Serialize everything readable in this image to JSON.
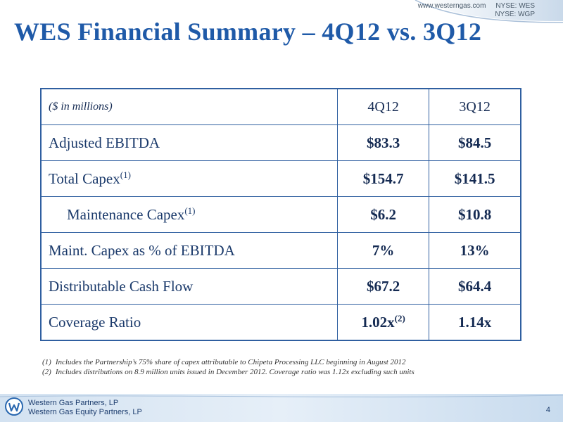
{
  "header": {
    "website": "www.westerngas.com",
    "ticker_wes": "NYSE: WES",
    "ticker_wgp": "NYSE: WGP"
  },
  "title": "WES Financial Summary – 4Q12 vs. 3Q12",
  "table": {
    "unit_label": "($ in millions)",
    "columns": [
      "4Q12",
      "3Q12"
    ],
    "rows": [
      {
        "label": "Adjusted EBITDA",
        "sup": "",
        "v1": "$83.3",
        "v1_sup": "",
        "v2": "$84.5"
      },
      {
        "label": "Total Capex",
        "sup": "(1)",
        "v1": "$154.7",
        "v1_sup": "",
        "v2": "$141.5"
      },
      {
        "label": "Maintenance Capex",
        "sup": "(1)",
        "v1": "$6.2",
        "v1_sup": "",
        "v2": "$10.8"
      },
      {
        "label": "Maint. Capex as % of EBITDA",
        "sup": "",
        "v1": "7%",
        "v1_sup": "",
        "v2": "13%"
      },
      {
        "label": "Distributable Cash Flow",
        "sup": "",
        "v1": "$67.2",
        "v1_sup": "",
        "v2": "$64.4"
      },
      {
        "label": "Coverage Ratio",
        "sup": "",
        "v1": "1.02x",
        "v1_sup": "(2)",
        "v2": "1.14x"
      }
    ]
  },
  "footnotes": [
    {
      "marker": "(1)",
      "text": "Includes the Partnership’s 75% share of capex attributable to Chipeta Processing LLC beginning in August 2012"
    },
    {
      "marker": "(2)",
      "text": "Includes distributions on 8.9 million units issued in December 2012.  Coverage ratio was 1.12x excluding such units"
    }
  ],
  "footer": {
    "company_1": "Western Gas Partners, LP",
    "company_2": "Western Gas Equity Partners, LP",
    "page_number": "4"
  },
  "colors": {
    "title": "#1f5aa8",
    "table_border": "#2f5fa0",
    "footer_bar": "#d6e4f2"
  }
}
